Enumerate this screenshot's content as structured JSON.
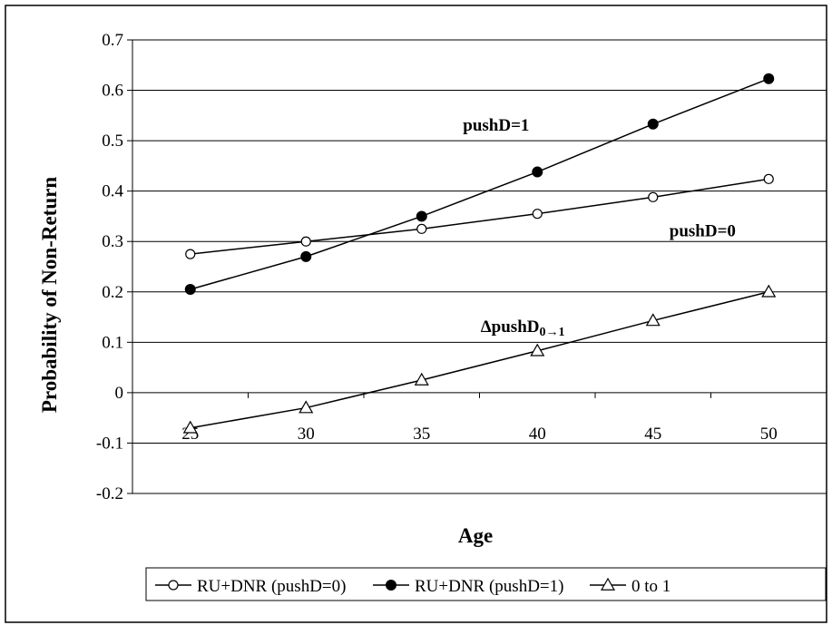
{
  "chart_data": {
    "type": "line",
    "title": "",
    "xlabel": "Age",
    "ylabel": "Probability of Non-Return",
    "x": [
      25,
      30,
      35,
      40,
      45,
      50
    ],
    "xticks": [
      "25",
      "30",
      "35",
      "40",
      "45",
      "50"
    ],
    "ylim": [
      -0.2,
      0.7
    ],
    "yticks": [
      "-0.2",
      "-0.1",
      "0",
      "0.1",
      "0.2",
      "0.3",
      "0.4",
      "0.5",
      "0.6",
      "0.7"
    ],
    "grid": "horizontal",
    "series": [
      {
        "name": "RU+DNR (pushD=0)",
        "marker": "open-circle",
        "values": [
          0.275,
          0.3,
          0.325,
          0.355,
          0.388,
          0.424
        ]
      },
      {
        "name": "RU+DNR (pushD=1)",
        "marker": "filled-circle",
        "values": [
          0.205,
          0.27,
          0.35,
          0.438,
          0.533,
          0.623
        ]
      },
      {
        "name": "0 to 1",
        "marker": "open-triangle",
        "values": [
          -0.07,
          -0.03,
          0.025,
          0.083,
          0.143,
          0.2
        ]
      }
    ],
    "annotations": [
      {
        "text": "pushD=1",
        "x": 40,
        "y": 0.52
      },
      {
        "text": "pushD=0",
        "x": 47,
        "y": 0.31
      },
      {
        "text": "ΔpushD0→1",
        "x": 41,
        "y": 0.12
      }
    ],
    "legend_position": "bottom"
  }
}
